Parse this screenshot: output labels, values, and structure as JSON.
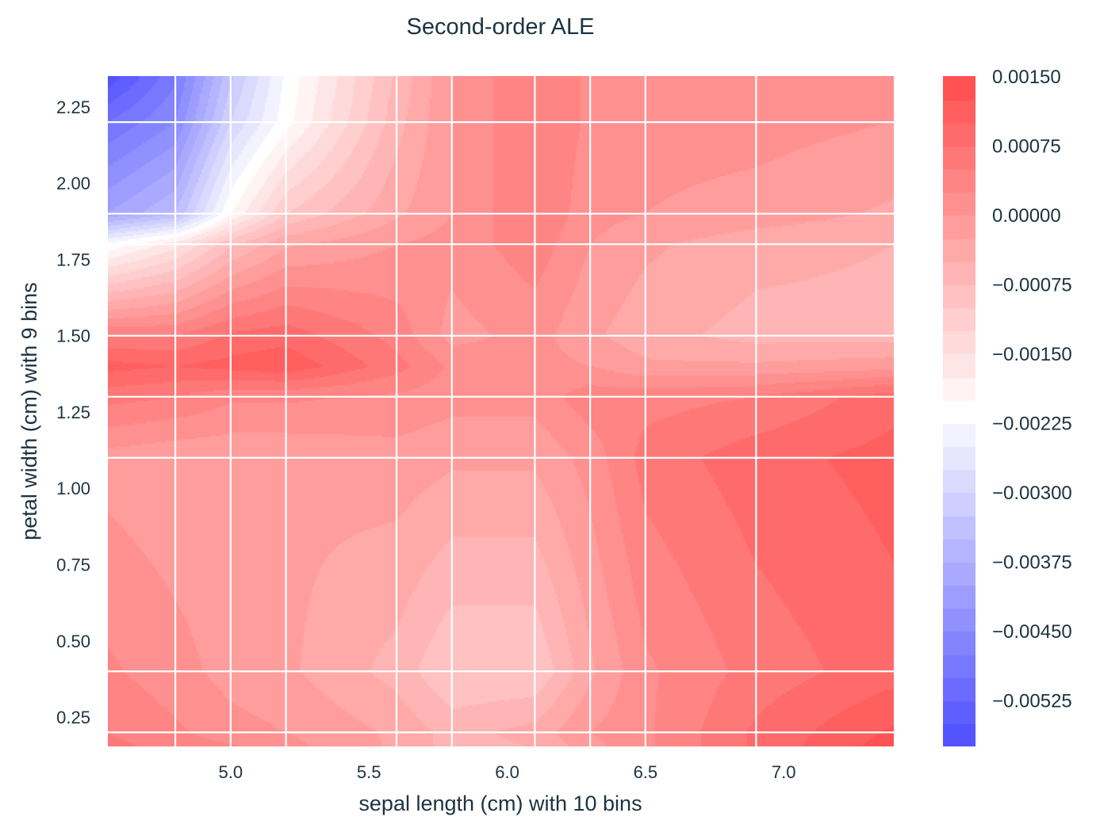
{
  "chart_data": {
    "type": "heatmap",
    "subtype": "filled-contour",
    "title": "Second-order ALE",
    "xlabel": "sepal length (cm) with 10 bins",
    "ylabel": "petal width (cm) with 9 bins",
    "xlim": [
      4.556,
      7.398
    ],
    "ylim": [
      0.154,
      2.351
    ],
    "xticks": [
      5.0,
      5.5,
      6.0,
      6.5,
      7.0
    ],
    "xtick_labels": [
      "5.0",
      "5.5",
      "6.0",
      "6.5",
      "7.0"
    ],
    "yticks": [
      0.25,
      0.5,
      0.75,
      1.0,
      1.25,
      1.5,
      1.75,
      2.0,
      2.25
    ],
    "ytick_labels": [
      "0.25",
      "0.50",
      "0.75",
      "1.00",
      "1.25",
      "1.50",
      "1.75",
      "2.00",
      "2.25"
    ],
    "x_bin_edges": [
      4.8,
      5.0,
      5.2,
      5.6,
      5.8,
      6.1,
      6.3,
      6.5,
      6.9
    ],
    "y_bin_edges": [
      0.2,
      0.4,
      1.1,
      1.3,
      1.5,
      1.8,
      1.9,
      2.2
    ],
    "grid": true,
    "colormap": "bwr",
    "colormap_alpha": 0.7,
    "levels": {
      "min": -0.00575,
      "max": 0.0015,
      "step": 0.00025
    },
    "colorbar_ticks": [
      0.0015,
      0.00075,
      0.0,
      -0.00075,
      -0.0015,
      -0.00225,
      -0.003,
      -0.00375,
      -0.0045,
      -0.00525
    ],
    "colorbar_tick_labels": [
      "0.00150",
      "0.00075",
      "0.00000",
      "−0.00075",
      "−0.00150",
      "−0.00225",
      "−0.00300",
      "−0.00375",
      "−0.00450",
      "−0.00525"
    ],
    "x": [
      4.55,
      4.8,
      5.0,
      5.2,
      5.6,
      5.8,
      6.1,
      6.3,
      6.5,
      6.9,
      7.4
    ],
    "y": [
      0.15,
      0.2,
      0.4,
      1.1,
      1.3,
      1.4,
      1.5,
      1.8,
      1.9,
      2.2,
      2.35
    ],
    "z": [
      [
        0.0006,
        0.0004,
        0.0003,
        0.0001,
        -0.0003,
        -0.0006,
        -0.0005,
        -0.0001,
        0.0002,
        0.0008,
        0.0014
      ],
      [
        0.0005,
        0.0003,
        0.0001,
        0.0,
        -0.0003,
        -0.0006,
        -0.0004,
        0.0,
        0.0002,
        0.0008,
        0.0013
      ],
      [
        0.0003,
        0.0001,
        -0.0001,
        -0.0002,
        -0.0006,
        -0.001,
        -0.001,
        -0.0003,
        0.0002,
        0.0006,
        0.0009
      ],
      [
        -0.0001,
        -0.0002,
        -0.0002,
        -0.0002,
        -0.0001,
        -0.0002,
        -0.0002,
        0.0001,
        0.0006,
        0.0009,
        0.0011
      ],
      [
        0.0006,
        0.0005,
        0.0003,
        0.0003,
        0.0002,
        0.0001,
        0.0001,
        0.0004,
        0.0004,
        0.0005,
        0.0009
      ],
      [
        0.0011,
        0.001,
        0.0011,
        0.0012,
        0.0006,
        0.0002,
        0.0001,
        0.0,
        -0.0002,
        -0.0002,
        -0.0001
      ],
      [
        0.0005,
        0.0005,
        0.0008,
        0.0009,
        0.0004,
        -0.0001,
        0.0001,
        -0.0002,
        -0.0004,
        -0.0006,
        -0.0006
      ],
      [
        -0.0022,
        -0.0016,
        -0.0008,
        -0.0003,
        0.0,
        0.0001,
        0.0004,
        0.0,
        -0.0002,
        -0.0004,
        -0.0005
      ],
      [
        -0.004,
        -0.0035,
        -0.002,
        -0.001,
        -0.0003,
        0.0,
        0.0005,
        0.0001,
        0.0,
        -0.0001,
        -0.0003
      ],
      [
        -0.005,
        -0.0045,
        -0.003,
        -0.0021,
        -0.0006,
        0.0,
        0.0005,
        0.0002,
        0.0001,
        0.0001,
        0.0
      ],
      [
        -0.0057,
        -0.0048,
        -0.0033,
        -0.0022,
        -0.0007,
        0.0,
        0.0005,
        0.0002,
        0.0001,
        0.0001,
        0.0
      ]
    ]
  }
}
